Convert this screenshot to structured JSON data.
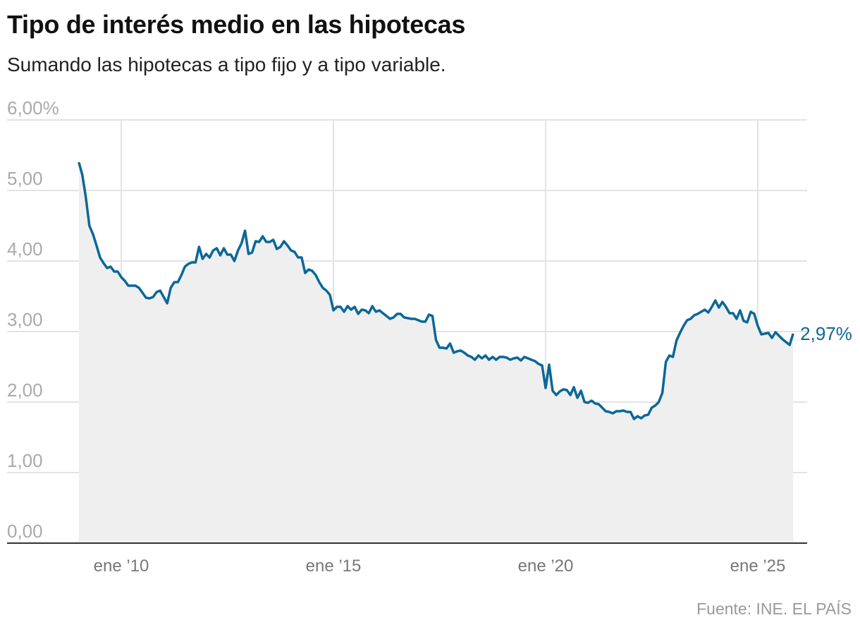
{
  "title": "Tipo de interés medio en las hipotecas",
  "subtitle": "Sumando las hipotecas a tipo fijo y a tipo variable.",
  "source": "Fuente: INE. EL PAÍS",
  "colors": {
    "line": "#0b6798",
    "area": "#efefef",
    "grid": "#e3e3e3",
    "axis": "#333333"
  },
  "chart_data": {
    "type": "area",
    "title": "Tipo de interés medio en las hipotecas",
    "xlabel": "",
    "ylabel": "",
    "ylim": [
      0,
      6
    ],
    "yticks": [
      0,
      1,
      2,
      3,
      4,
      5,
      6
    ],
    "ytick_labels": [
      "0,00",
      "1,00",
      "2,00",
      "3,00",
      "4,00",
      "5,00",
      "6,00%"
    ],
    "xticks": [
      "2010-01",
      "2015-01",
      "2020-01",
      "2025-01"
    ],
    "xtick_labels": [
      "ene ’10",
      "ene ’15",
      "ene ’20",
      "ene ’25"
    ],
    "grid": true,
    "end_label": "2,97%",
    "frequency": "monthly",
    "values_by_year": {
      "2009": [
        5.4,
        5.22,
        4.9,
        4.5,
        4.38,
        4.22,
        4.05,
        3.97,
        3.9,
        3.92,
        3.85,
        3.85
      ],
      "2010": [
        3.77,
        3.72,
        3.65,
        3.65,
        3.65,
        3.62,
        3.55,
        3.48,
        3.47,
        3.49,
        3.56,
        3.58
      ],
      "2011": [
        3.49,
        3.4,
        3.62,
        3.7,
        3.7,
        3.8,
        3.92,
        3.96,
        3.98,
        3.98,
        4.2,
        4.03
      ],
      "2012": [
        4.1,
        4.05,
        4.15,
        4.18,
        4.08,
        4.18,
        4.09,
        4.09,
        4.0,
        4.15,
        4.25,
        4.43
      ],
      "2013": [
        4.1,
        4.12,
        4.28,
        4.27,
        4.35,
        4.27,
        4.27,
        4.3,
        4.17,
        4.2,
        4.28,
        4.22
      ],
      "2014": [
        4.15,
        4.13,
        4.05,
        4.05,
        3.83,
        3.88,
        3.86,
        3.8,
        3.7,
        3.62,
        3.58,
        3.52
      ],
      "2015": [
        3.3,
        3.35,
        3.35,
        3.28,
        3.36,
        3.31,
        3.35,
        3.25,
        3.31,
        3.3,
        3.26,
        3.36
      ],
      "2016": [
        3.28,
        3.3,
        3.26,
        3.22,
        3.18,
        3.2,
        3.25,
        3.25,
        3.2,
        3.19,
        3.18,
        3.18
      ],
      "2017": [
        3.16,
        3.14,
        3.14,
        3.24,
        3.22,
        2.88,
        2.77,
        2.77,
        2.76,
        2.83,
        2.7,
        2.72
      ],
      "2018": [
        2.73,
        2.7,
        2.66,
        2.64,
        2.6,
        2.66,
        2.62,
        2.66,
        2.6,
        2.64,
        2.6,
        2.64
      ],
      "2019": [
        2.64,
        2.63,
        2.6,
        2.62,
        2.63,
        2.59,
        2.64,
        2.62,
        2.6,
        2.58,
        2.54,
        2.52
      ],
      "2020": [
        2.2,
        2.53,
        2.16,
        2.1,
        2.15,
        2.18,
        2.17,
        2.1,
        2.21,
        2.06,
        2.16,
        2.0
      ],
      "2021": [
        1.99,
        2.02,
        1.98,
        1.97,
        1.92,
        1.87,
        1.86,
        1.84,
        1.87,
        1.87,
        1.88,
        1.86
      ],
      "2022": [
        1.86,
        1.76,
        1.8,
        1.77,
        1.81,
        1.82,
        1.92,
        1.95,
        2.0,
        2.13,
        2.57,
        2.66
      ],
      "2023": [
        2.64,
        2.87,
        2.98,
        3.08,
        3.16,
        3.18,
        3.23,
        3.25,
        3.28,
        3.31,
        3.27,
        3.35
      ],
      "2024": [
        3.44,
        3.34,
        3.42,
        3.35,
        3.26,
        3.26,
        3.18,
        3.3,
        3.15,
        3.13,
        3.28,
        3.25
      ],
      "2025": [
        3.08,
        2.96,
        2.97,
        2.98,
        2.91,
        2.99,
        2.94,
        2.89,
        2.85,
        2.81,
        2.97
      ]
    }
  }
}
